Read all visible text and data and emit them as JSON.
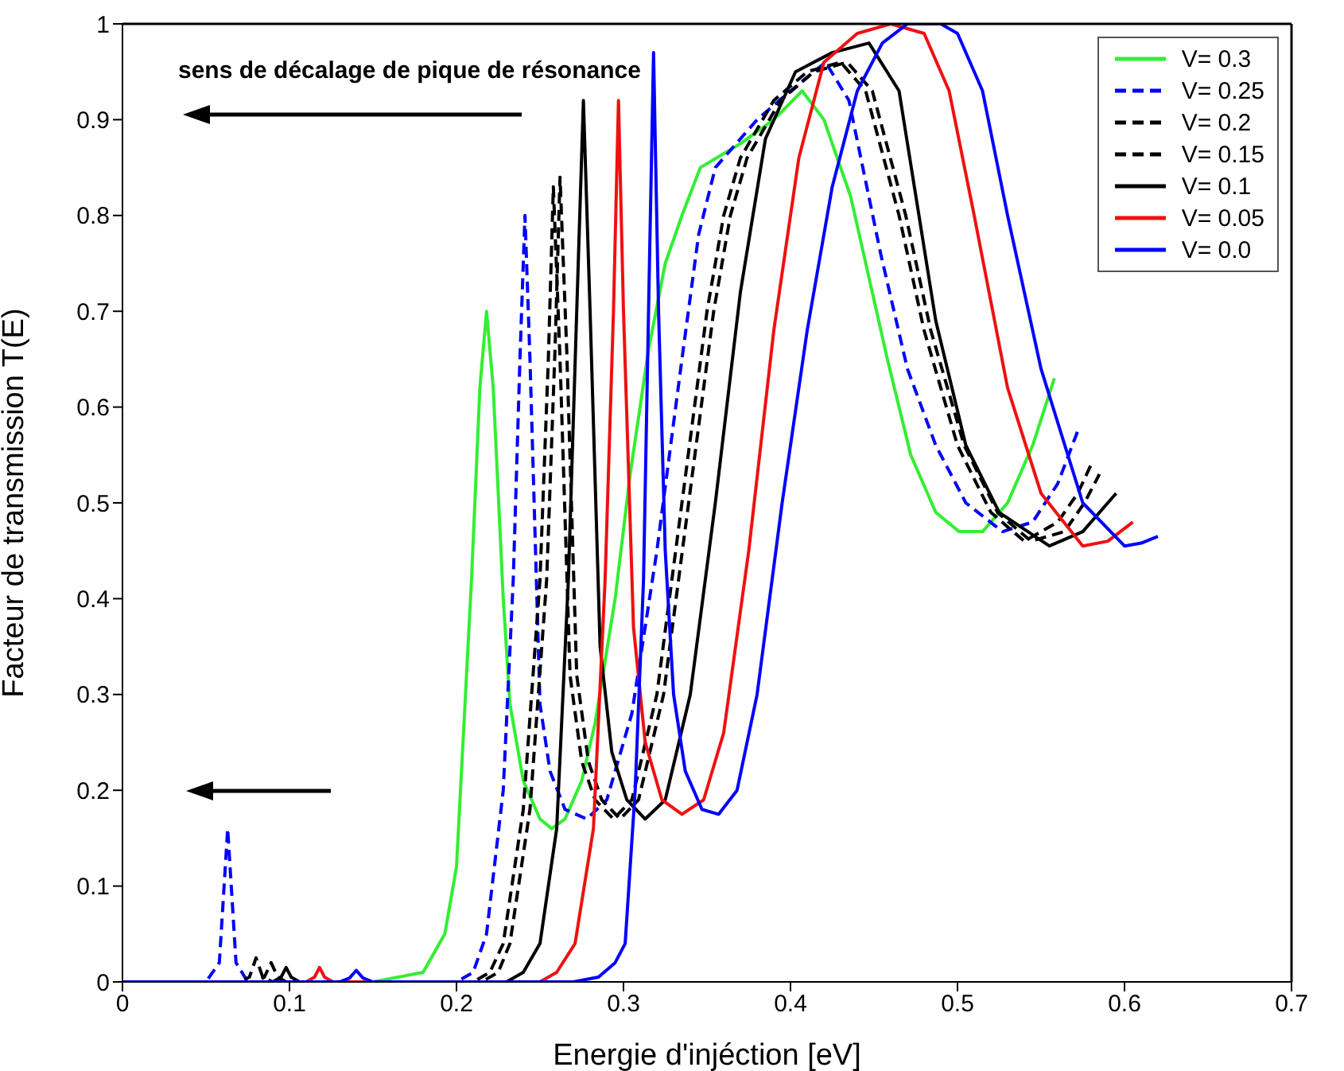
{
  "chart_data": {
    "type": "line",
    "xlabel": "Energie d'injéction [eV]",
    "ylabel": "Facteur de transmission T(E)",
    "annotations": [
      "sens de décalage de pique de résonance"
    ],
    "xlim": [
      0,
      0.7
    ],
    "xticks": [
      0,
      0.1,
      0.2,
      0.3,
      0.4,
      0.5,
      0.6,
      0.7
    ],
    "ylim": [
      0,
      1
    ],
    "yticks": [
      0,
      0.1,
      0.2,
      0.3,
      0.4,
      0.5,
      0.6,
      0.7,
      0.8,
      0.9,
      1
    ],
    "grid": false,
    "legend": "top right",
    "marker": "none",
    "series": [
      {
        "name": "V= 0.3",
        "color": "#33ee33",
        "line_style": "solid",
        "x": [
          0,
          0.15,
          0.18,
          0.193,
          0.2,
          0.209,
          0.214,
          0.218,
          0.222,
          0.228,
          0.232,
          0.24,
          0.25,
          0.257,
          0.265,
          0.275,
          0.283,
          0.295,
          0.304,
          0.315,
          0.325,
          0.335,
          0.346,
          0.37,
          0.39,
          0.407,
          0.42,
          0.436,
          0.458,
          0.472,
          0.487,
          0.501,
          0.515,
          0.53,
          0.545,
          0.558
        ],
        "values": [
          0,
          0,
          0.01,
          0.05,
          0.12,
          0.42,
          0.62,
          0.7,
          0.62,
          0.4,
          0.29,
          0.21,
          0.17,
          0.16,
          0.17,
          0.21,
          0.27,
          0.4,
          0.53,
          0.66,
          0.75,
          0.8,
          0.85,
          0.875,
          0.9,
          0.93,
          0.9,
          0.82,
          0.65,
          0.55,
          0.49,
          0.47,
          0.47,
          0.5,
          0.56,
          0.63
        ]
      },
      {
        "name": "V= 0.25",
        "color": "#0000ff",
        "line_style": "dashed",
        "x": [
          0,
          0.05,
          0.058,
          0.063,
          0.068,
          0.075,
          0.2,
          0.21,
          0.218,
          0.228,
          0.234,
          0.238,
          0.241,
          0.244,
          0.25,
          0.256,
          0.265,
          0.278,
          0.29,
          0.305,
          0.32,
          0.335,
          0.345,
          0.355,
          0.38,
          0.4,
          0.421,
          0.435,
          0.454,
          0.47,
          0.487,
          0.505,
          0.527,
          0.545,
          0.56,
          0.572
        ],
        "values": [
          0,
          0,
          0.02,
          0.16,
          0.02,
          0,
          0,
          0.01,
          0.05,
          0.2,
          0.42,
          0.65,
          0.8,
          0.65,
          0.29,
          0.22,
          0.18,
          0.17,
          0.19,
          0.28,
          0.45,
          0.65,
          0.78,
          0.85,
          0.9,
          0.93,
          0.96,
          0.92,
          0.76,
          0.64,
          0.56,
          0.5,
          0.47,
          0.48,
          0.52,
          0.575
        ]
      },
      {
        "name": "V= 0.2",
        "color": "#000000",
        "line_style": "dashed",
        "x": [
          0,
          0.07,
          0.076,
          0.08,
          0.084,
          0.09,
          0.21,
          0.22,
          0.228,
          0.24,
          0.25,
          0.255,
          0.258,
          0.262,
          0.268,
          0.275,
          0.283,
          0.294,
          0.305,
          0.32,
          0.335,
          0.35,
          0.36,
          0.37,
          0.39,
          0.41,
          0.43,
          0.445,
          0.465,
          0.48,
          0.5,
          0.52,
          0.54,
          0.56,
          0.572,
          0.58
        ],
        "values": [
          0,
          0,
          0.005,
          0.025,
          0.005,
          0,
          0,
          0.01,
          0.04,
          0.18,
          0.42,
          0.65,
          0.83,
          0.65,
          0.32,
          0.23,
          0.19,
          0.17,
          0.19,
          0.3,
          0.5,
          0.7,
          0.8,
          0.86,
          0.92,
          0.95,
          0.96,
          0.93,
          0.8,
          0.68,
          0.56,
          0.49,
          0.46,
          0.48,
          0.51,
          0.54
        ]
      },
      {
        "name": "V= 0.15",
        "color": "#000000",
        "line_style": "dashed",
        "x": [
          0,
          0.08,
          0.085,
          0.089,
          0.093,
          0.098,
          0.215,
          0.225,
          0.232,
          0.244,
          0.254,
          0.259,
          0.262,
          0.266,
          0.272,
          0.279,
          0.287,
          0.298,
          0.309,
          0.324,
          0.339,
          0.354,
          0.364,
          0.374,
          0.394,
          0.414,
          0.434,
          0.449,
          0.469,
          0.484,
          0.504,
          0.524,
          0.544,
          0.564,
          0.576,
          0.585
        ],
        "values": [
          0,
          0,
          0.005,
          0.02,
          0.005,
          0,
          0,
          0.01,
          0.04,
          0.18,
          0.42,
          0.66,
          0.84,
          0.66,
          0.32,
          0.23,
          0.19,
          0.17,
          0.19,
          0.3,
          0.5,
          0.7,
          0.8,
          0.86,
          0.92,
          0.95,
          0.96,
          0.93,
          0.8,
          0.68,
          0.56,
          0.49,
          0.46,
          0.47,
          0.5,
          0.53
        ]
      },
      {
        "name": "V= 0.1",
        "color": "#000000",
        "line_style": "solid",
        "x": [
          0,
          0.09,
          0.095,
          0.098,
          0.101,
          0.106,
          0.23,
          0.24,
          0.25,
          0.26,
          0.267,
          0.272,
          0.276,
          0.28,
          0.286,
          0.293,
          0.302,
          0.313,
          0.325,
          0.34,
          0.355,
          0.37,
          0.385,
          0.403,
          0.425,
          0.447,
          0.465,
          0.487,
          0.505,
          0.525,
          0.555,
          0.575,
          0.595
        ],
        "values": [
          0,
          0,
          0.005,
          0.015,
          0.005,
          0,
          0,
          0.01,
          0.04,
          0.16,
          0.42,
          0.7,
          0.92,
          0.7,
          0.35,
          0.24,
          0.19,
          0.17,
          0.19,
          0.3,
          0.5,
          0.72,
          0.88,
          0.95,
          0.97,
          0.98,
          0.93,
          0.69,
          0.56,
          0.49,
          0.455,
          0.47,
          0.51
        ]
      },
      {
        "name": "V= 0.05",
        "color": "#ee1111",
        "line_style": "solid",
        "x": [
          0,
          0.11,
          0.115,
          0.118,
          0.121,
          0.126,
          0.25,
          0.26,
          0.271,
          0.282,
          0.289,
          0.294,
          0.297,
          0.3,
          0.306,
          0.313,
          0.323,
          0.335,
          0.348,
          0.36,
          0.375,
          0.39,
          0.405,
          0.42,
          0.44,
          0.46,
          0.48,
          0.495,
          0.51,
          0.53,
          0.55,
          0.575,
          0.59,
          0.605
        ],
        "values": [
          0,
          0,
          0.005,
          0.015,
          0.005,
          0,
          0,
          0.01,
          0.04,
          0.16,
          0.42,
          0.7,
          0.92,
          0.7,
          0.37,
          0.25,
          0.19,
          0.175,
          0.19,
          0.26,
          0.45,
          0.68,
          0.86,
          0.96,
          0.99,
          1,
          0.99,
          0.93,
          0.8,
          0.62,
          0.51,
          0.455,
          0.46,
          0.48
        ]
      },
      {
        "name": "V= 0.0",
        "color": "#0000ff",
        "line_style": "solid",
        "x": [
          0,
          0.13,
          0.136,
          0.14,
          0.144,
          0.15,
          0.27,
          0.285,
          0.295,
          0.301,
          0.307,
          0.312,
          0.315,
          0.318,
          0.321,
          0.325,
          0.33,
          0.337,
          0.347,
          0.357,
          0.368,
          0.38,
          0.395,
          0.41,
          0.425,
          0.44,
          0.455,
          0.47,
          0.49,
          0.5,
          0.515,
          0.53,
          0.55,
          0.575,
          0.6,
          0.61,
          0.62
        ],
        "values": [
          0,
          0,
          0.004,
          0.012,
          0.004,
          0,
          0,
          0.005,
          0.02,
          0.04,
          0.2,
          0.42,
          0.7,
          0.97,
          0.7,
          0.45,
          0.3,
          0.22,
          0.18,
          0.175,
          0.2,
          0.3,
          0.5,
          0.68,
          0.83,
          0.93,
          0.98,
          1,
          1,
          0.99,
          0.93,
          0.8,
          0.64,
          0.5,
          0.455,
          0.458,
          0.465
        ]
      }
    ]
  }
}
